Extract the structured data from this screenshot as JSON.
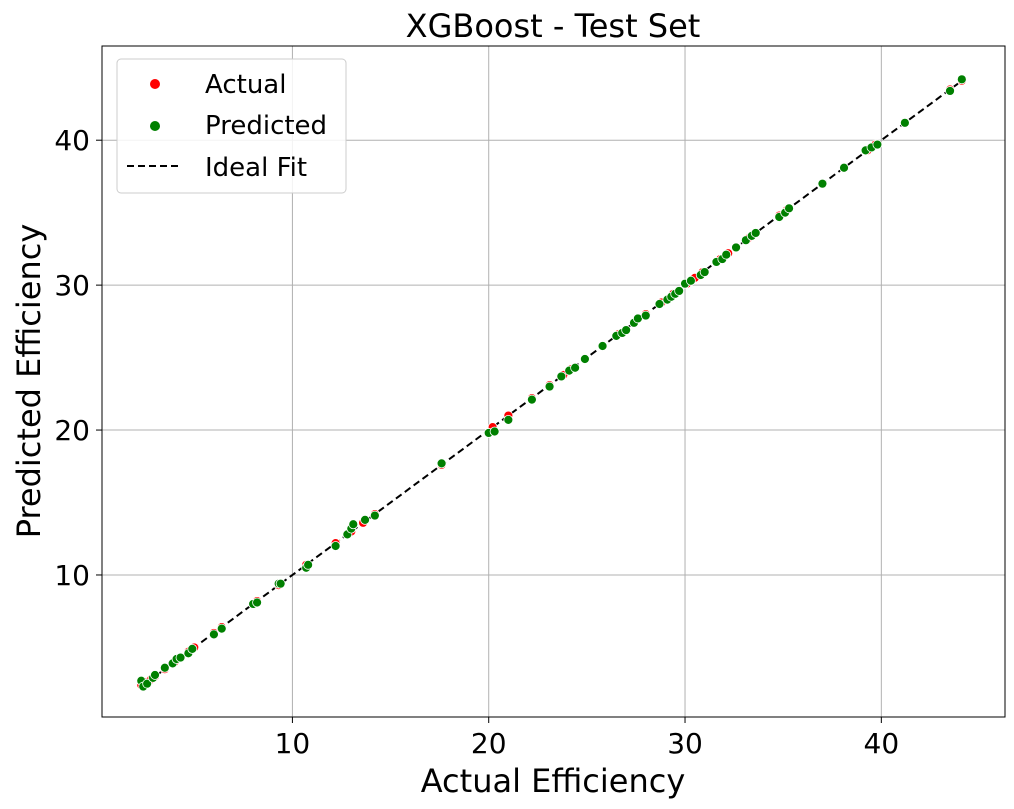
{
  "chart_data": {
    "type": "scatter",
    "title": "XGBoost - Test Set",
    "xlabel": "Actual Efficiency",
    "ylabel": "Predicted Efficiency",
    "xlim": [
      0.3,
      46.3
    ],
    "ylim": [
      0.2,
      46.5
    ],
    "xticks": [
      10,
      20,
      30,
      40
    ],
    "yticks": [
      10,
      20,
      30,
      40
    ],
    "grid": true,
    "legend_position": "top-left",
    "series": [
      {
        "name": "Actual",
        "kind": "points",
        "color": "#ff0000",
        "points": [
          [
            2.3,
            2.4
          ],
          [
            2.5,
            2.6
          ],
          [
            2.8,
            2.8
          ],
          [
            3.0,
            3.0
          ],
          [
            3.5,
            3.5
          ],
          [
            4.0,
            4.0
          ],
          [
            4.3,
            4.3
          ],
          [
            4.7,
            4.7
          ],
          [
            5.0,
            5.0
          ],
          [
            6.0,
            6.0
          ],
          [
            6.4,
            6.4
          ],
          [
            8.0,
            8.0
          ],
          [
            8.2,
            8.2
          ],
          [
            9.3,
            9.3
          ],
          [
            10.7,
            10.7
          ],
          [
            12.2,
            12.2
          ],
          [
            12.8,
            12.8
          ],
          [
            13.0,
            13.0
          ],
          [
            13.6,
            13.6
          ],
          [
            14.2,
            14.2
          ],
          [
            17.6,
            17.6
          ],
          [
            20.2,
            20.2
          ],
          [
            21.0,
            21.0
          ],
          [
            22.2,
            22.2
          ],
          [
            23.1,
            23.1
          ],
          [
            23.8,
            23.8
          ],
          [
            24.2,
            24.2
          ],
          [
            24.9,
            24.9
          ],
          [
            25.8,
            25.8
          ],
          [
            26.6,
            26.6
          ],
          [
            27.4,
            27.4
          ],
          [
            28.0,
            28.0
          ],
          [
            28.8,
            28.8
          ],
          [
            29.4,
            29.4
          ],
          [
            30.1,
            30.1
          ],
          [
            30.5,
            30.5
          ],
          [
            30.9,
            30.9
          ],
          [
            31.8,
            31.8
          ],
          [
            32.2,
            32.2
          ],
          [
            32.6,
            32.6
          ],
          [
            33.2,
            33.2
          ],
          [
            33.6,
            33.6
          ],
          [
            34.8,
            34.8
          ],
          [
            35.2,
            35.2
          ],
          [
            37.0,
            37.0
          ],
          [
            38.1,
            38.1
          ],
          [
            39.3,
            39.3
          ],
          [
            39.7,
            39.7
          ],
          [
            41.2,
            41.2
          ],
          [
            43.5,
            43.5
          ],
          [
            44.1,
            44.1
          ]
        ]
      },
      {
        "name": "Predicted",
        "kind": "points",
        "color": "#008000",
        "points": [
          [
            2.3,
            2.7
          ],
          [
            2.4,
            2.3
          ],
          [
            2.6,
            2.5
          ],
          [
            2.9,
            2.9
          ],
          [
            3.0,
            3.1
          ],
          [
            3.5,
            3.6
          ],
          [
            3.9,
            3.9
          ],
          [
            4.1,
            4.2
          ],
          [
            4.3,
            4.3
          ],
          [
            4.7,
            4.6
          ],
          [
            4.9,
            4.9
          ],
          [
            6.0,
            5.9
          ],
          [
            6.4,
            6.3
          ],
          [
            8.0,
            8.0
          ],
          [
            8.2,
            8.1
          ],
          [
            9.3,
            9.4
          ],
          [
            9.4,
            9.4
          ],
          [
            10.7,
            10.5
          ],
          [
            10.8,
            10.7
          ],
          [
            12.2,
            12.0
          ],
          [
            12.8,
            12.8
          ],
          [
            13.0,
            13.2
          ],
          [
            13.1,
            13.5
          ],
          [
            13.7,
            13.8
          ],
          [
            14.2,
            14.1
          ],
          [
            17.6,
            17.7
          ],
          [
            20.0,
            19.8
          ],
          [
            20.3,
            19.9
          ],
          [
            21.0,
            20.7
          ],
          [
            22.2,
            22.1
          ],
          [
            23.1,
            23.0
          ],
          [
            23.7,
            23.7
          ],
          [
            24.1,
            24.1
          ],
          [
            24.4,
            24.3
          ],
          [
            24.9,
            24.9
          ],
          [
            25.8,
            25.8
          ],
          [
            26.5,
            26.5
          ],
          [
            26.8,
            26.7
          ],
          [
            27.0,
            26.9
          ],
          [
            27.4,
            27.4
          ],
          [
            27.6,
            27.7
          ],
          [
            28.0,
            27.9
          ],
          [
            28.7,
            28.7
          ],
          [
            29.1,
            29.0
          ],
          [
            29.3,
            29.2
          ],
          [
            29.5,
            29.4
          ],
          [
            29.7,
            29.6
          ],
          [
            30.0,
            30.1
          ],
          [
            30.3,
            30.3
          ],
          [
            30.8,
            30.7
          ],
          [
            31.0,
            30.9
          ],
          [
            31.6,
            31.6
          ],
          [
            31.9,
            31.8
          ],
          [
            32.1,
            32.1
          ],
          [
            32.6,
            32.6
          ],
          [
            33.1,
            33.1
          ],
          [
            33.4,
            33.4
          ],
          [
            33.6,
            33.6
          ],
          [
            34.8,
            34.7
          ],
          [
            35.1,
            35.0
          ],
          [
            35.3,
            35.3
          ],
          [
            37.0,
            37.0
          ],
          [
            38.1,
            38.1
          ],
          [
            39.2,
            39.3
          ],
          [
            39.5,
            39.5
          ],
          [
            39.8,
            39.7
          ],
          [
            41.2,
            41.2
          ],
          [
            43.5,
            43.4
          ],
          [
            44.1,
            44.2
          ]
        ]
      },
      {
        "name": "Ideal Fit",
        "kind": "line",
        "style": "dashed",
        "color": "#000000",
        "x": [
          2.2,
          44.2
        ],
        "y": [
          2.2,
          44.2
        ]
      }
    ]
  }
}
